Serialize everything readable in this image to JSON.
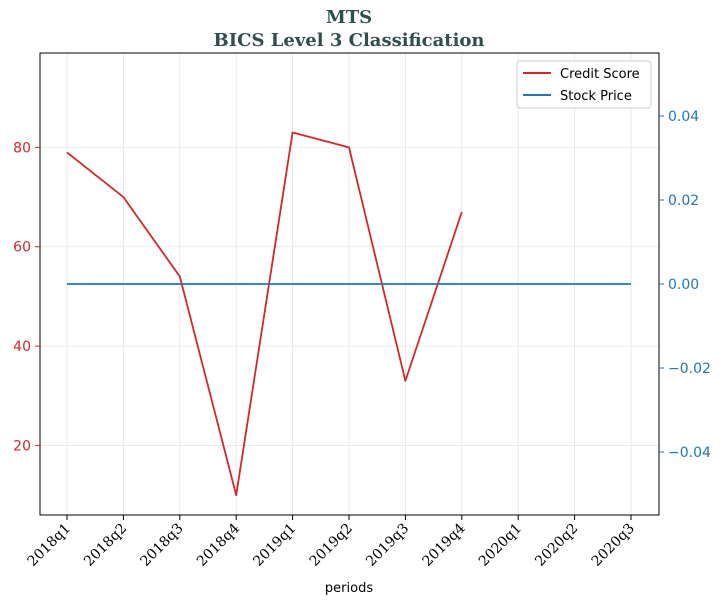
{
  "chart_data": {
    "type": "line",
    "title": "MTS",
    "subtitle": "BICS Level 3 Classification",
    "xlabel": "periods",
    "categories": [
      "2018q1",
      "2018q2",
      "2018q3",
      "2018q4",
      "2019q1",
      "2019q2",
      "2019q3",
      "2019q4",
      "2020q1",
      "2020q2",
      "2020q3"
    ],
    "left_axis": {
      "ylim": [
        6,
        99
      ],
      "ticks": [
        20,
        40,
        60,
        80
      ],
      "tick_labels": [
        "20",
        "40",
        "60",
        "80"
      ],
      "color": "#d62728"
    },
    "right_axis": {
      "ylim": [
        -0.055,
        0.055
      ],
      "ticks": [
        -0.04,
        -0.02,
        0.0,
        0.02,
        0.04
      ],
      "tick_labels": [
        "−0.04",
        "−0.02",
        "0.00",
        "0.02",
        "0.04"
      ],
      "color": "#1f77b4"
    },
    "series": [
      {
        "name": "Credit Score",
        "axis": "left",
        "color": "#d62728",
        "values": [
          79,
          70,
          54,
          10,
          83,
          80,
          33,
          67,
          null,
          null,
          null
        ]
      },
      {
        "name": "Stock Price",
        "axis": "right",
        "color": "#1f77b4",
        "values": [
          0,
          0,
          0,
          0,
          0,
          0,
          0,
          0,
          0,
          0,
          0
        ]
      }
    ],
    "grid": true,
    "legend_position": "top-right"
  }
}
